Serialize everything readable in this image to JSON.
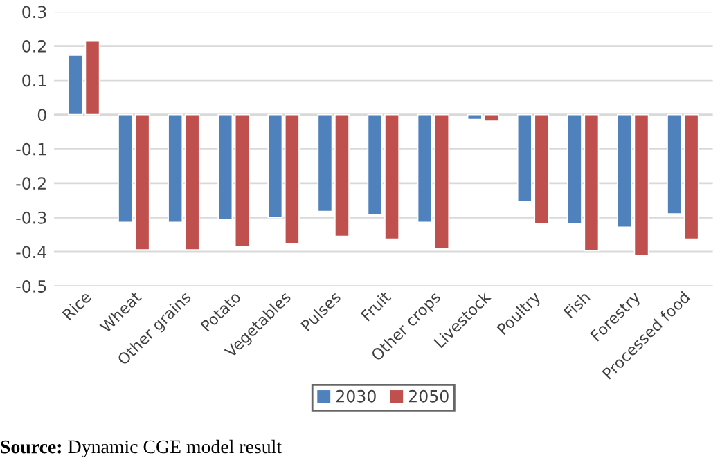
{
  "chart_data": {
    "type": "bar",
    "categories": [
      "Rice",
      "Wheat",
      "Other grains",
      "Potato",
      "Vegetables",
      "Pulses",
      "Fruit",
      "Other crops",
      "Livestock",
      "Poultry",
      "Fish",
      "Forestry",
      "Processed food"
    ],
    "series": [
      {
        "name": "2030",
        "color": "#4f81bd",
        "values": [
          0.173,
          -0.314,
          -0.314,
          -0.306,
          -0.3,
          -0.282,
          -0.291,
          -0.314,
          -0.014,
          -0.253,
          -0.318,
          -0.328,
          -0.289
        ]
      },
      {
        "name": "2050",
        "color": "#c0504d",
        "values": [
          0.216,
          -0.394,
          -0.394,
          -0.384,
          -0.376,
          -0.355,
          -0.363,
          -0.391,
          -0.019,
          -0.318,
          -0.397,
          -0.41,
          -0.363
        ]
      }
    ],
    "ylim": [
      -0.5,
      0.3
    ],
    "yticks": [
      -0.5,
      -0.4,
      -0.3,
      -0.2,
      -0.1,
      0,
      0.1,
      0.2,
      0.3
    ],
    "grid": "y",
    "legend": "bottom",
    "annotations": [
      "Source: Dynamic CGE model result"
    ]
  }
}
